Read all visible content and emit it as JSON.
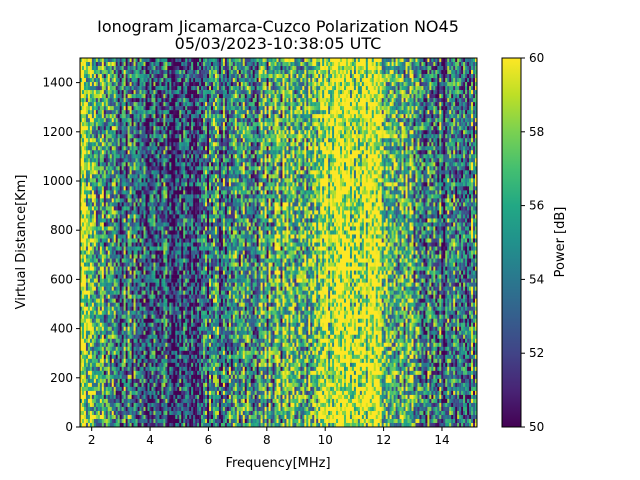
{
  "chart_data": {
    "type": "heatmap",
    "title_line1": "Ionogram Jicamarca-Cuzco Polarization NO45",
    "title_line2": "05/03/2023-10:38:05 UTC",
    "xlabel": "Frequency[MHz]",
    "ylabel": "Virtual Distance[Km]",
    "xlim": [
      1.6,
      15.2
    ],
    "ylim": [
      0,
      1500
    ],
    "x_ticks": [
      2,
      4,
      6,
      8,
      10,
      12,
      14
    ],
    "y_ticks": [
      0,
      200,
      400,
      600,
      800,
      1000,
      1200,
      1400
    ],
    "colorbar": {
      "label": "Power [dB]",
      "range": [
        50,
        60
      ],
      "ticks": [
        50,
        52,
        54,
        56,
        58,
        60
      ],
      "colormap": "viridis"
    },
    "power_profile_by_frequency": {
      "frequencies_mhz": [
        1.6,
        2.2,
        2.6,
        3.0,
        3.6,
        4.2,
        4.8,
        5.4,
        6.0,
        6.6,
        7.2,
        7.8,
        8.4,
        8.8,
        9.2,
        9.8,
        10.4,
        11.0,
        11.6,
        12.2,
        12.6,
        13.2,
        13.8,
        14.4,
        14.8,
        15.2
      ],
      "typical_power_db": [
        58.5,
        57.5,
        55.0,
        54.0,
        53.5,
        53.0,
        52.0,
        52.5,
        53.5,
        54.0,
        54.5,
        55.5,
        56.0,
        57.0,
        56.5,
        58.5,
        59.8,
        60.0,
        59.8,
        58.0,
        56.5,
        55.0,
        54.0,
        53.5,
        54.5,
        55.0
      ]
    }
  }
}
